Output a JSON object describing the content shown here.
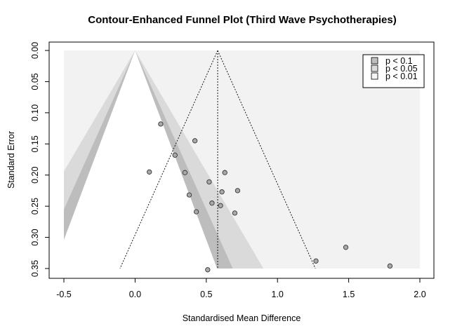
{
  "chart_data": {
    "type": "scatter",
    "title": "Contour-Enhanced Funnel Plot (Third Wave Psychotherapies)",
    "xlabel": "Standardised Mean Difference",
    "ylabel": "Standard Error",
    "xlim": [
      -0.5,
      2.0
    ],
    "ylim": [
      0.0,
      0.35
    ],
    "y_reversed": true,
    "x_ticks": [
      "-0.5",
      "0.0",
      "0.5",
      "1.0",
      "1.5",
      "2.0"
    ],
    "y_ticks": [
      "0.00",
      "0.05",
      "0.10",
      "0.15",
      "0.20",
      "0.25",
      "0.30",
      "0.35"
    ],
    "contour_center": 0,
    "pooled_estimate": 0.58,
    "legend": {
      "position": "top-right",
      "entries": [
        {
          "label": "p < 0.1",
          "color": "#bebebe"
        },
        {
          "label": "p < 0.05",
          "color": "#dcdcdc"
        },
        {
          "label": "p < 0.01",
          "color": "#f5f5f5"
        }
      ]
    },
    "colors": {
      "outside": "#f2f2f2",
      "band_p10": "#bdbdbd",
      "band_p05": "#dadada",
      "inner": "#ffffff",
      "point_fill": "#a9a9a9"
    },
    "points": [
      {
        "x": 0.18,
        "y": 0.118
      },
      {
        "x": 0.42,
        "y": 0.145
      },
      {
        "x": 0.28,
        "y": 0.168
      },
      {
        "x": 0.1,
        "y": 0.195
      },
      {
        "x": 0.35,
        "y": 0.196
      },
      {
        "x": 0.63,
        "y": 0.196
      },
      {
        "x": 0.52,
        "y": 0.211
      },
      {
        "x": 0.61,
        "y": 0.227
      },
      {
        "x": 0.72,
        "y": 0.225
      },
      {
        "x": 0.38,
        "y": 0.232
      },
      {
        "x": 0.54,
        "y": 0.245
      },
      {
        "x": 0.6,
        "y": 0.249
      },
      {
        "x": 0.43,
        "y": 0.259
      },
      {
        "x": 0.7,
        "y": 0.261
      },
      {
        "x": 1.48,
        "y": 0.316
      },
      {
        "x": 1.27,
        "y": 0.338
      },
      {
        "x": 1.79,
        "y": 0.346
      },
      {
        "x": 0.51,
        "y": 0.352
      }
    ]
  }
}
